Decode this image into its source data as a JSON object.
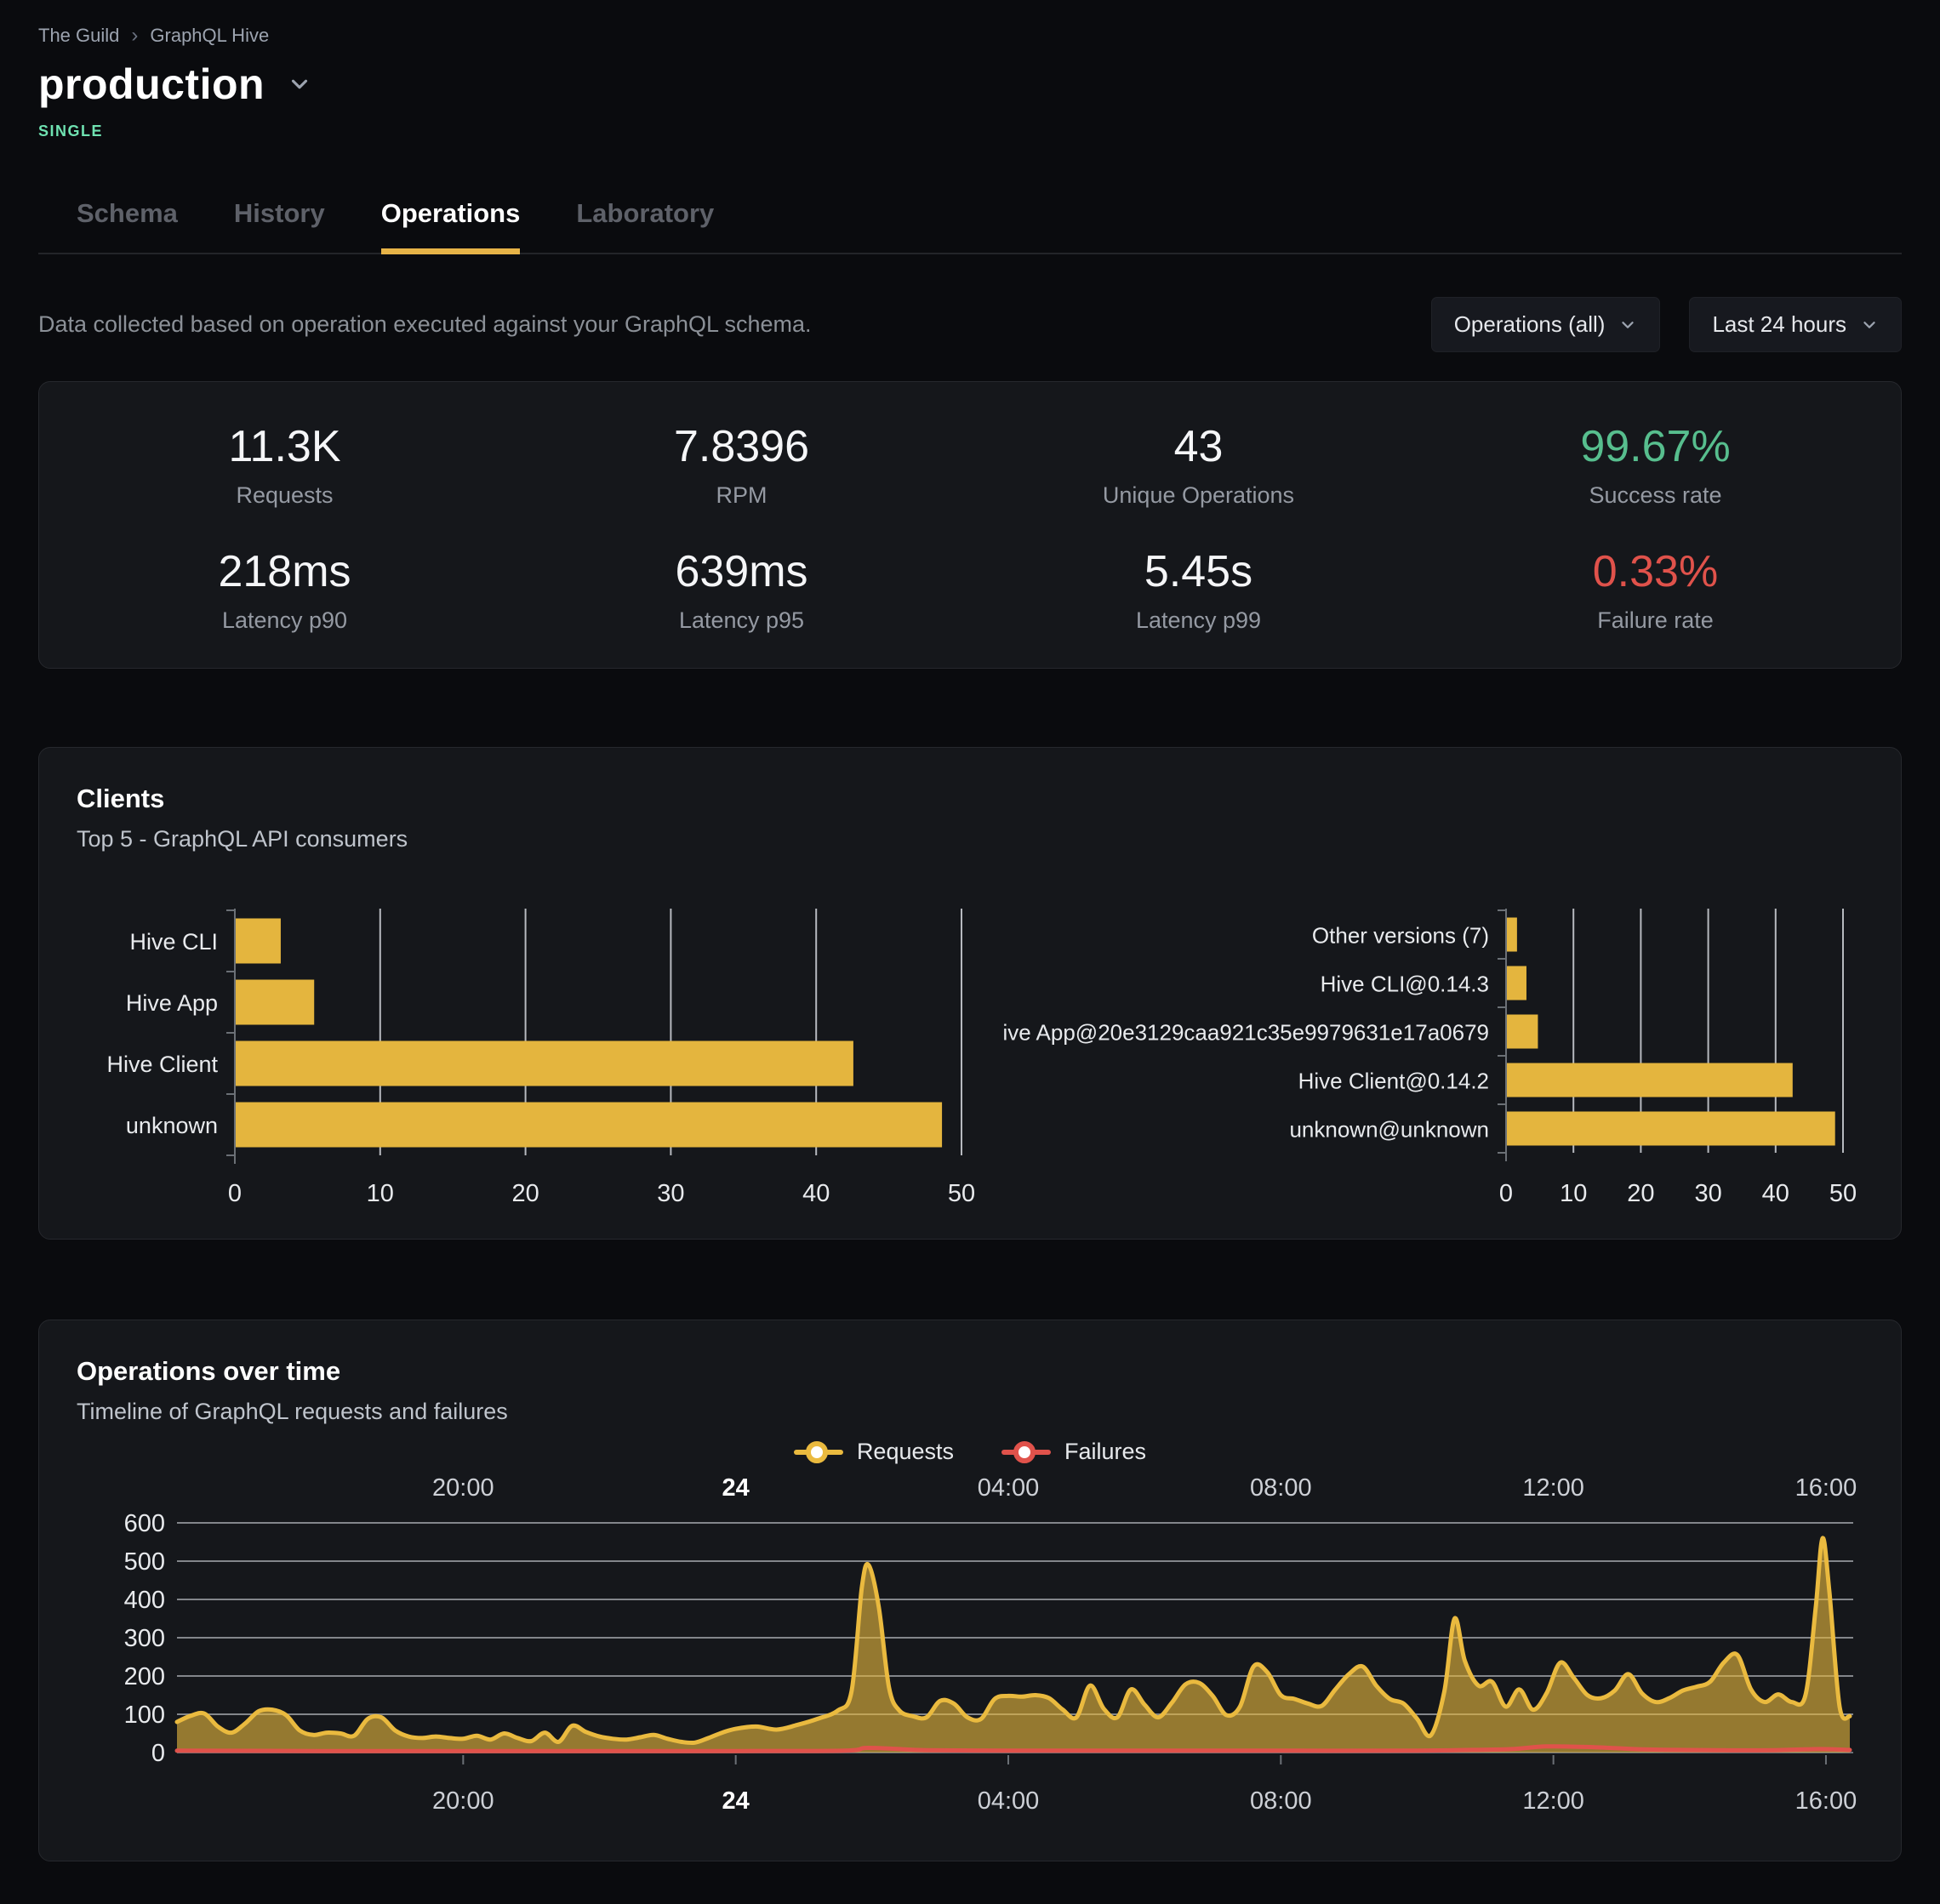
{
  "page": {
    "breadcrumb": {
      "org": "The Guild",
      "project": "GraphQL Hive"
    },
    "target": {
      "name": "production",
      "badge": "SINGLE"
    },
    "tabs": [
      {
        "label": "Schema",
        "active": false
      },
      {
        "label": "History",
        "active": false
      },
      {
        "label": "Operations",
        "active": true
      },
      {
        "label": "Laboratory",
        "active": false
      }
    ],
    "description": "Data collected based on operation executed against your GraphQL schema.",
    "filters": {
      "operations": "Operations (all)",
      "period": "Last 24 hours"
    }
  },
  "colors": {
    "accent": "#e6b347",
    "bar": "#e4b53e",
    "success": "#57be8e",
    "failure": "#e0524b",
    "badge": "#6fe2b1",
    "grid": "#dfe2e8"
  },
  "stats": {
    "items": [
      {
        "value": "11.3K",
        "label": "Requests",
        "tone": "default"
      },
      {
        "value": "7.8396",
        "label": "RPM",
        "tone": "default"
      },
      {
        "value": "43",
        "label": "Unique Operations",
        "tone": "default"
      },
      {
        "value": "99.67%",
        "label": "Success rate",
        "tone": "success"
      },
      {
        "value": "218ms",
        "label": "Latency p90",
        "tone": "default"
      },
      {
        "value": "639ms",
        "label": "Latency p95",
        "tone": "default"
      },
      {
        "value": "5.45s",
        "label": "Latency p99",
        "tone": "default"
      },
      {
        "value": "0.33%",
        "label": "Failure rate",
        "tone": "danger"
      }
    ]
  },
  "chart_data": [
    {
      "id": "clients_by_name",
      "type": "bar",
      "orientation": "horizontal",
      "title": "Clients",
      "subtitle": "Top 5 - GraphQL API consumers",
      "categories": [
        "Hive CLI",
        "Hive App",
        "Hive Client",
        "unknown"
      ],
      "values": [
        3.1,
        5.4,
        42.5,
        48.6
      ],
      "xlim": [
        0,
        50
      ],
      "xticks": [
        0,
        10,
        20,
        30,
        40,
        50
      ],
      "bar_color": "#e4b53e"
    },
    {
      "id": "clients_by_version",
      "type": "bar",
      "orientation": "horizontal",
      "categories": [
        "Other versions (7)",
        "Hive CLI@0.14.3",
        "Hive App@20e3129caa921c35e9979631e17a0679",
        "Hive Client@0.14.2",
        "unknown@unknown"
      ],
      "values": [
        1.5,
        2.9,
        4.6,
        42.4,
        48.7
      ],
      "xlim": [
        0,
        50
      ],
      "xticks": [
        0,
        10,
        20,
        30,
        40,
        50
      ],
      "bar_color": "#e4b53e"
    },
    {
      "id": "operations_over_time",
      "type": "area",
      "title": "Operations over time",
      "subtitle": "Timeline of GraphQL requests and failures",
      "ylim": [
        0,
        600
      ],
      "yticks": [
        0,
        100,
        200,
        300,
        400,
        500,
        600
      ],
      "x_hours_range": [
        -8.2,
        16.4
      ],
      "x_ticks": [
        {
          "h": -4,
          "label": "20:00",
          "bold": false
        },
        {
          "h": 0,
          "label": "24",
          "bold": true
        },
        {
          "h": 4,
          "label": "04:00",
          "bold": false
        },
        {
          "h": 8,
          "label": "08:00",
          "bold": false
        },
        {
          "h": 12,
          "label": "12:00",
          "bold": false
        },
        {
          "h": 16,
          "label": "16:00",
          "bold": false
        }
      ],
      "series": [
        {
          "name": "Requests",
          "color": "#eaba3f",
          "fill": "rgba(227,182,61,0.62)",
          "points": [
            [
              -8.2,
              80
            ],
            [
              -8.0,
              96
            ],
            [
              -7.8,
              102
            ],
            [
              -7.6,
              68
            ],
            [
              -7.4,
              52
            ],
            [
              -7.2,
              76
            ],
            [
              -7.0,
              108
            ],
            [
              -6.8,
              112
            ],
            [
              -6.6,
              98
            ],
            [
              -6.4,
              58
            ],
            [
              -6.2,
              46
            ],
            [
              -6.0,
              52
            ],
            [
              -5.8,
              50
            ],
            [
              -5.6,
              44
            ],
            [
              -5.4,
              88
            ],
            [
              -5.2,
              92
            ],
            [
              -5.0,
              58
            ],
            [
              -4.8,
              42
            ],
            [
              -4.6,
              38
            ],
            [
              -4.4,
              42
            ],
            [
              -4.2,
              38
            ],
            [
              -4.0,
              36
            ],
            [
              -3.8,
              44
            ],
            [
              -3.6,
              34
            ],
            [
              -3.4,
              50
            ],
            [
              -3.2,
              38
            ],
            [
              -3.0,
              30
            ],
            [
              -2.8,
              52
            ],
            [
              -2.6,
              28
            ],
            [
              -2.4,
              70
            ],
            [
              -2.2,
              54
            ],
            [
              -2.0,
              42
            ],
            [
              -1.8,
              36
            ],
            [
              -1.6,
              34
            ],
            [
              -1.4,
              40
            ],
            [
              -1.2,
              46
            ],
            [
              -1.0,
              36
            ],
            [
              -0.8,
              28
            ],
            [
              -0.6,
              26
            ],
            [
              -0.4,
              38
            ],
            [
              -0.2,
              52
            ],
            [
              0.0,
              62
            ],
            [
              0.3,
              68
            ],
            [
              0.6,
              60
            ],
            [
              0.9,
              72
            ],
            [
              1.2,
              88
            ],
            [
              1.5,
              110
            ],
            [
              1.7,
              160
            ],
            [
              1.85,
              430
            ],
            [
              1.95,
              490
            ],
            [
              2.1,
              380
            ],
            [
              2.25,
              170
            ],
            [
              2.4,
              110
            ],
            [
              2.6,
              95
            ],
            [
              2.8,
              92
            ],
            [
              3.0,
              135
            ],
            [
              3.2,
              128
            ],
            [
              3.4,
              92
            ],
            [
              3.6,
              88
            ],
            [
              3.8,
              140
            ],
            [
              4.0,
              148
            ],
            [
              4.2,
              146
            ],
            [
              4.4,
              150
            ],
            [
              4.6,
              142
            ],
            [
              4.8,
              112
            ],
            [
              5.0,
              92
            ],
            [
              5.2,
              175
            ],
            [
              5.4,
              115
            ],
            [
              5.6,
              92
            ],
            [
              5.8,
              165
            ],
            [
              6.0,
              125
            ],
            [
              6.2,
              92
            ],
            [
              6.4,
              130
            ],
            [
              6.6,
              178
            ],
            [
              6.8,
              182
            ],
            [
              7.0,
              148
            ],
            [
              7.2,
              98
            ],
            [
              7.4,
              120
            ],
            [
              7.6,
              225
            ],
            [
              7.8,
              210
            ],
            [
              8.0,
              150
            ],
            [
              8.2,
              140
            ],
            [
              8.4,
              128
            ],
            [
              8.6,
              122
            ],
            [
              8.8,
              165
            ],
            [
              9.0,
              205
            ],
            [
              9.2,
              225
            ],
            [
              9.4,
              175
            ],
            [
              9.6,
              140
            ],
            [
              9.8,
              128
            ],
            [
              10.0,
              88
            ],
            [
              10.2,
              45
            ],
            [
              10.4,
              160
            ],
            [
              10.55,
              350
            ],
            [
              10.7,
              240
            ],
            [
              10.9,
              175
            ],
            [
              11.1,
              185
            ],
            [
              11.3,
              120
            ],
            [
              11.5,
              165
            ],
            [
              11.7,
              112
            ],
            [
              11.9,
              155
            ],
            [
              12.1,
              235
            ],
            [
              12.3,
              195
            ],
            [
              12.5,
              150
            ],
            [
              12.7,
              142
            ],
            [
              12.9,
              162
            ],
            [
              13.1,
              205
            ],
            [
              13.3,
              155
            ],
            [
              13.5,
              132
            ],
            [
              13.7,
              142
            ],
            [
              13.9,
              162
            ],
            [
              14.1,
              172
            ],
            [
              14.3,
              185
            ],
            [
              14.5,
              235
            ],
            [
              14.7,
              255
            ],
            [
              14.9,
              165
            ],
            [
              15.1,
              132
            ],
            [
              15.3,
              152
            ],
            [
              15.5,
              132
            ],
            [
              15.7,
              150
            ],
            [
              15.85,
              380
            ],
            [
              15.95,
              560
            ],
            [
              16.05,
              420
            ],
            [
              16.2,
              120
            ],
            [
              16.35,
              95
            ]
          ]
        },
        {
          "name": "Failures",
          "color": "#e0524b",
          "points": [
            [
              -8.2,
              5
            ],
            [
              -6.0,
              4
            ],
            [
              -4.0,
              4
            ],
            [
              -2.0,
              4
            ],
            [
              0.0,
              4
            ],
            [
              1.6,
              5
            ],
            [
              1.9,
              12
            ],
            [
              2.3,
              10
            ],
            [
              2.8,
              6
            ],
            [
              4.0,
              5
            ],
            [
              6.0,
              5
            ],
            [
              8.0,
              5
            ],
            [
              10.0,
              5
            ],
            [
              10.8,
              7
            ],
            [
              11.4,
              9
            ],
            [
              11.9,
              16
            ],
            [
              12.6,
              14
            ],
            [
              13.4,
              8
            ],
            [
              14.5,
              6
            ],
            [
              15.2,
              6
            ],
            [
              15.9,
              9
            ],
            [
              16.35,
              7
            ]
          ]
        }
      ]
    }
  ]
}
